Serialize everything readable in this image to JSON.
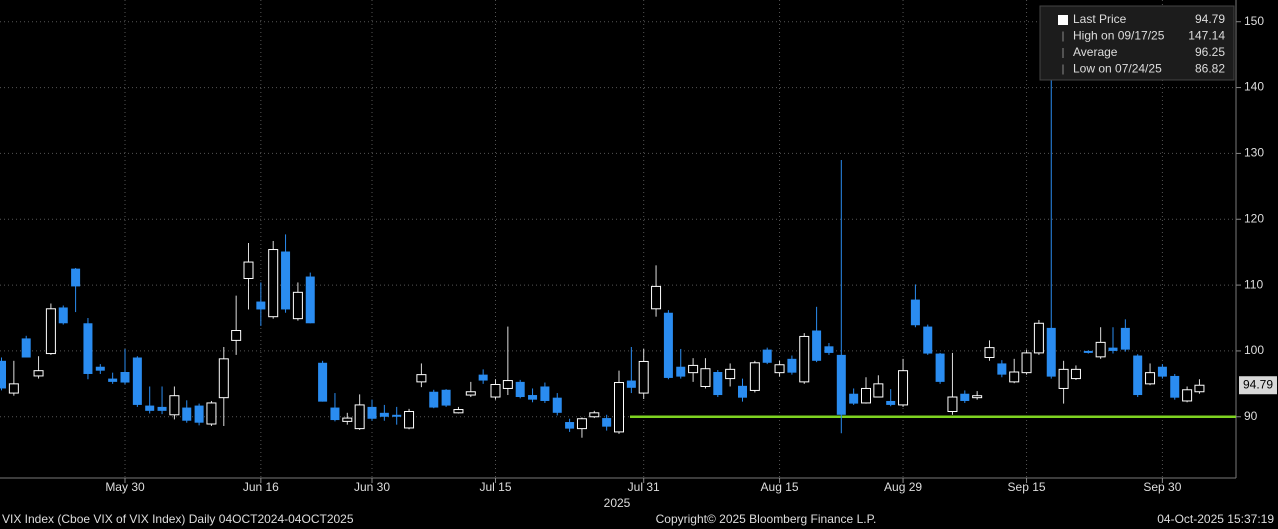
{
  "chart_data": {
    "type": "candlestick",
    "categories": [
      null,
      null,
      null,
      null,
      null,
      null,
      null,
      null,
      null,
      null,
      "May 30",
      null,
      null,
      null,
      null,
      null,
      null,
      null,
      null,
      null,
      null,
      "Jun 16",
      null,
      null,
      null,
      null,
      null,
      null,
      null,
      null,
      "Jun 30",
      null,
      null,
      null,
      null,
      null,
      null,
      null,
      null,
      null,
      "Jul 15",
      null,
      null,
      null,
      null,
      null,
      null,
      null,
      null,
      null,
      null,
      null,
      "Jul 31",
      null,
      null,
      null,
      null,
      null,
      null,
      null,
      null,
      null,
      null,
      "Aug 15",
      null,
      null,
      null,
      null,
      null,
      null,
      null,
      null,
      null,
      "Aug 29",
      null,
      null,
      null,
      null,
      null,
      null,
      null,
      null,
      null,
      "Sep 15",
      null,
      null,
      null,
      null,
      null,
      null,
      null,
      null,
      null,
      null,
      "Sep 30",
      null,
      null,
      null
    ],
    "x_sublabel": "2025",
    "open": [
      98.5,
      93.6,
      101.9,
      96.2,
      99.6,
      106.6,
      112.5,
      104.2,
      97.6,
      95.8,
      96.8,
      99,
      91.7,
      91.5,
      90.3,
      91.4,
      91.7,
      88.9,
      92.9,
      101.6,
      111,
      107.5,
      105.2,
      115.1,
      104.9,
      111.3,
      98.2,
      91.4,
      89.3,
      88.2,
      91.5,
      90.6,
      90.3,
      88.3,
      95.3,
      93.8,
      94.1,
      90.6,
      93.3,
      96.4,
      93,
      94.3,
      95.3,
      93.3,
      94.6,
      92.9,
      89.2,
      88.2,
      90,
      89.8,
      87.7,
      95.5,
      93.6,
      106.4,
      105.8,
      97.6,
      96.7,
      94.6,
      96.8,
      95.8,
      94.7,
      94,
      100.2,
      96.7,
      98.8,
      95.3,
      103.1,
      100.7,
      99.4,
      93.5,
      92.1,
      93,
      92.4,
      91.8,
      107.8,
      103.7,
      99.6,
      90.8,
      93.5,
      92.9,
      99,
      98.1,
      95.3,
      96.7,
      99.7,
      103.5,
      94.3,
      95.8,
      100,
      99.1,
      100.5,
      103.5,
      99.3,
      95,
      97.6,
      96.2,
      92.4,
      93.8
    ],
    "high": [
      99,
      98.5,
      102.3,
      99.2,
      107.2,
      106.9,
      112.6,
      105,
      98,
      96.7,
      100.3,
      99.2,
      94.6,
      94.6,
      94.6,
      92.5,
      92,
      92.4,
      100.6,
      108.4,
      116.4,
      110.4,
      116.7,
      117.7,
      110.4,
      111.9,
      98.5,
      93.6,
      90.6,
      93.4,
      92.6,
      91.8,
      91.5,
      91.2,
      98.1,
      94.1,
      94.2,
      91.5,
      95.3,
      97.2,
      95.7,
      103.7,
      95.6,
      94.3,
      95.2,
      93.6,
      89.7,
      89.9,
      90.9,
      90.3,
      97,
      100.6,
      100.3,
      113,
      106.2,
      100.3,
      98.9,
      98.9,
      97.1,
      98.1,
      95.8,
      98.5,
      100.5,
      98.5,
      99.3,
      102.7,
      106.7,
      101.2,
      129,
      94.3,
      96,
      96.3,
      94.2,
      98.8,
      110.1,
      104,
      99.7,
      99.7,
      94,
      93.9,
      101.6,
      98.6,
      98.8,
      100.2,
      104.7,
      147.14,
      98.5,
      97.8,
      100.1,
      103.6,
      103.6,
      104.8,
      99.5,
      98.1,
      98,
      96.5,
      94.6,
      95.7
    ],
    "low": [
      94,
      93.2,
      99,
      95.8,
      99.4,
      104,
      105.9,
      95.7,
      96.5,
      95,
      94.9,
      91.5,
      90.5,
      90.4,
      89.6,
      89.1,
      88.7,
      88.6,
      88.6,
      99.4,
      106.3,
      103.8,
      104.9,
      105.8,
      104.6,
      104.2,
      92.3,
      89.3,
      88.8,
      88,
      89.4,
      89.4,
      88.8,
      88.1,
      94.5,
      91.3,
      91.5,
      90.5,
      93,
      95,
      92.6,
      93.3,
      92.8,
      92.2,
      92.1,
      90.2,
      87.7,
      86.82,
      89.8,
      87.9,
      87.4,
      93.6,
      92.7,
      105.2,
      95.7,
      95.8,
      95.3,
      94.3,
      93,
      94.6,
      92.3,
      93.7,
      98,
      96.1,
      96.4,
      95,
      98.3,
      99.4,
      87.5,
      91.8,
      92,
      93,
      91.6,
      91.5,
      103.6,
      99.4,
      95,
      90.3,
      92.1,
      92.6,
      98.5,
      96,
      95.1,
      96.4,
      99.4,
      95.8,
      92,
      95.6,
      99.6,
      98.8,
      99.6,
      99.9,
      93,
      94.8,
      95.8,
      92.6,
      92.2,
      93.5
    ],
    "close": [
      94.3,
      95,
      99,
      97,
      106.4,
      104.2,
      109.8,
      96.5,
      97,
      95.3,
      95.2,
      91.8,
      90.9,
      90.9,
      93.2,
      89.4,
      89.1,
      92.1,
      98.8,
      103.1,
      113.5,
      106.3,
      115.4,
      106.3,
      108.9,
      104.2,
      92.3,
      89.5,
      89.8,
      91.8,
      89.7,
      90,
      90,
      90.8,
      96.4,
      91.4,
      91.7,
      91.1,
      93.8,
      95.5,
      94.9,
      95.5,
      93,
      92.6,
      92.4,
      90.6,
      88.2,
      89.7,
      90.6,
      88.5,
      95.2,
      94.4,
      98.4,
      109.8,
      95.9,
      96.1,
      97.8,
      97.3,
      93.3,
      97.2,
      92.9,
      98.2,
      98.2,
      97.9,
      96.7,
      102.2,
      98.5,
      99.7,
      90.3,
      92,
      94.3,
      95,
      91.8,
      97,
      103.9,
      99.6,
      95.3,
      93,
      92.4,
      93.2,
      100.5,
      96.4,
      96.8,
      99.7,
      104.2,
      96.1,
      97.2,
      97.2,
      99.7,
      101.3,
      100,
      100.2,
      93.3,
      96.7,
      96.1,
      92.9,
      94.1,
      94.79
    ],
    "up_color": "#ffffff",
    "down_color": "#2a8cf0",
    "hline": {
      "value": 90,
      "color": "#7ed321"
    },
    "ylim": [
      80.7,
      153.3
    ],
    "yticks": [
      90,
      100,
      110,
      120,
      130,
      140,
      150
    ],
    "grid": true,
    "legend": [
      {
        "label": "Last Price",
        "value": 94.79
      },
      {
        "label": "High on 09/17/25",
        "value": 147.14
      },
      {
        "label": "Average",
        "value": 96.25
      },
      {
        "label": "Low on 07/24/25",
        "value": 86.82
      }
    ],
    "footer_left": "VIX Index (Cboe VIX of VIX Index) Daily 04OCT2024-04OCT2025",
    "footer_center": "Copyright© 2025 Bloomberg Finance L.P.",
    "footer_right": "04-Oct-2025 15:37:19"
  }
}
